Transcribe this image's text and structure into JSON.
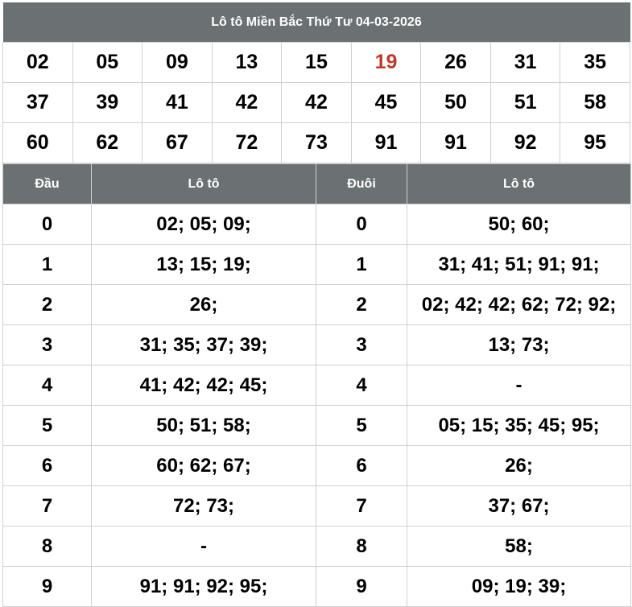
{
  "title": "Lô tô Miền Bắc Thứ Tư 04-03-2026",
  "highlight_color": "#c0392b",
  "numbers": [
    [
      {
        "v": "02"
      },
      {
        "v": "05"
      },
      {
        "v": "09"
      },
      {
        "v": "13"
      },
      {
        "v": "15"
      },
      {
        "v": "19",
        "hl": true
      },
      {
        "v": "26"
      },
      {
        "v": "31"
      },
      {
        "v": "35"
      }
    ],
    [
      {
        "v": "37"
      },
      {
        "v": "39"
      },
      {
        "v": "41"
      },
      {
        "v": "42"
      },
      {
        "v": "42"
      },
      {
        "v": "45"
      },
      {
        "v": "50"
      },
      {
        "v": "51"
      },
      {
        "v": "58"
      }
    ],
    [
      {
        "v": "60"
      },
      {
        "v": "62"
      },
      {
        "v": "67"
      },
      {
        "v": "72"
      },
      {
        "v": "73"
      },
      {
        "v": "91"
      },
      {
        "v": "91"
      },
      {
        "v": "92"
      },
      {
        "v": "95"
      }
    ]
  ],
  "headers": {
    "dau": "Đầu",
    "loto1": "Lô tô",
    "duoi": "Đuôi",
    "loto2": "Lô tô"
  },
  "rows": [
    {
      "dau": "0",
      "dau_loto": "02; 05; 09;",
      "duoi": "0",
      "duoi_loto": "50; 60;"
    },
    {
      "dau": "1",
      "dau_loto": "13; 15; 19;",
      "duoi": "1",
      "duoi_loto": "31; 41; 51; 91; 91;"
    },
    {
      "dau": "2",
      "dau_loto": "26;",
      "duoi": "2",
      "duoi_loto": "02; 42; 42; 62; 72; 92;"
    },
    {
      "dau": "3",
      "dau_loto": "31; 35; 37; 39;",
      "duoi": "3",
      "duoi_loto": "13; 73;"
    },
    {
      "dau": "4",
      "dau_loto": "41; 42; 42; 45;",
      "duoi": "4",
      "duoi_loto": "-"
    },
    {
      "dau": "5",
      "dau_loto": "50; 51; 58;",
      "duoi": "5",
      "duoi_loto": "05; 15; 35; 45; 95;"
    },
    {
      "dau": "6",
      "dau_loto": "60; 62; 67;",
      "duoi": "6",
      "duoi_loto": "26;"
    },
    {
      "dau": "7",
      "dau_loto": "72; 73;",
      "duoi": "7",
      "duoi_loto": "37; 67;"
    },
    {
      "dau": "8",
      "dau_loto": "-",
      "duoi": "8",
      "duoi_loto": "58;"
    },
    {
      "dau": "9",
      "dau_loto": "91; 91; 92; 95;",
      "duoi": "9",
      "duoi_loto": "09; 19; 39;"
    }
  ]
}
